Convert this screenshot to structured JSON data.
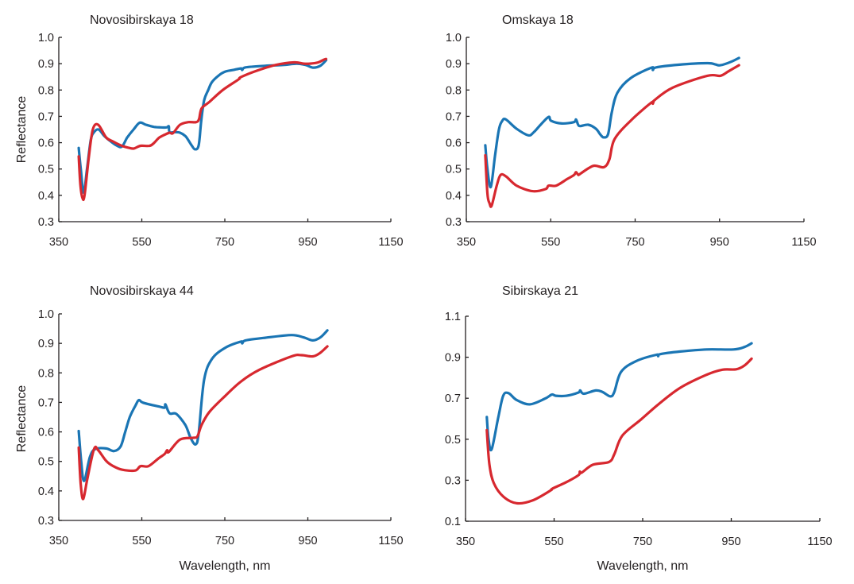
{
  "colors": {
    "series_a": "#1a75b4",
    "series_b": "#d7282f",
    "axis": "#231f20"
  },
  "chart_data": [
    {
      "type": "line",
      "title": "Novosibirskaya 18",
      "xlabel": "",
      "ylabel": "Reflectance",
      "xlim": [
        350,
        1150
      ],
      "ylim": [
        0.3,
        1.0
      ],
      "xticks": [
        350,
        550,
        750,
        950,
        1150
      ],
      "xtick_labels": [
        "350",
        "550",
        "750",
        "950",
        "1150"
      ],
      "yticks": [
        0.3,
        0.4,
        0.5,
        0.6,
        0.7,
        0.8,
        0.9,
        1.0
      ],
      "ytick_labels": [
        "0.3",
        "0.4",
        "0.5",
        "0.6",
        "0.7",
        "0.8",
        "0.9",
        "1.0"
      ],
      "grid": false,
      "series": [
        {
          "name": "blue",
          "color": "#1a75b4",
          "x": [
            398,
            403,
            410,
            418,
            427,
            435,
            446,
            460,
            475,
            489,
            502,
            515,
            530,
            545,
            560,
            579,
            595,
            610,
            615,
            617,
            630,
            642,
            655,
            662,
            670,
            678,
            687,
            693,
            700,
            710,
            719,
            735,
            751,
            770,
            789,
            792,
            800,
            847,
            890,
            923,
            945,
            962,
            980,
            994
          ],
          "y": [
            0.58,
            0.5,
            0.41,
            0.5,
            0.61,
            0.64,
            0.65,
            0.625,
            0.605,
            0.59,
            0.585,
            0.62,
            0.65,
            0.676,
            0.668,
            0.66,
            0.658,
            0.658,
            0.662,
            0.64,
            0.64,
            0.638,
            0.625,
            0.61,
            0.59,
            0.575,
            0.59,
            0.68,
            0.76,
            0.8,
            0.83,
            0.855,
            0.87,
            0.876,
            0.882,
            0.876,
            0.886,
            0.892,
            0.895,
            0.9,
            0.895,
            0.885,
            0.892,
            0.913
          ]
        },
        {
          "name": "red",
          "color": "#d7282f",
          "x": [
            398,
            402,
            407,
            412,
            422,
            432,
            445,
            464,
            480,
            502,
            520,
            531,
            547,
            569,
            580,
            591,
            605,
            617,
            625,
            642,
            662,
            681,
            688,
            694,
            713,
            745,
            783,
            785,
            790,
            821,
            872,
            917,
            940,
            955,
            975,
            988,
            994
          ],
          "y": [
            0.548,
            0.44,
            0.39,
            0.4,
            0.54,
            0.65,
            0.668,
            0.62,
            0.605,
            0.588,
            0.58,
            0.578,
            0.588,
            0.588,
            0.6,
            0.618,
            0.63,
            0.638,
            0.636,
            0.668,
            0.678,
            0.678,
            0.69,
            0.73,
            0.755,
            0.8,
            0.84,
            0.845,
            0.85,
            0.87,
            0.895,
            0.905,
            0.9,
            0.9,
            0.905,
            0.915,
            0.918
          ]
        }
      ]
    },
    {
      "type": "line",
      "title": "Omskaya 18",
      "xlabel": "",
      "ylabel": "",
      "xlim": [
        350,
        1150
      ],
      "ylim": [
        0.3,
        1.0
      ],
      "xticks": [
        350,
        550,
        750,
        950,
        1150
      ],
      "xtick_labels": [
        "350",
        "550",
        "750",
        "950",
        "1150"
      ],
      "yticks": [
        0.3,
        0.4,
        0.5,
        0.6,
        0.7,
        0.8,
        0.9,
        1.0
      ],
      "ytick_labels": [
        "0.3",
        "0.4",
        "0.5",
        "0.6",
        "0.7",
        "0.8",
        "0.9",
        "1.0"
      ],
      "grid": false,
      "series": [
        {
          "name": "blue",
          "color": "#1a75b4",
          "x": [
            395,
            400,
            408,
            418,
            427,
            435,
            444,
            469,
            497,
            510,
            526,
            545,
            551,
            576,
            605,
            610,
            615,
            620,
            639,
            657,
            668,
            676,
            686,
            695,
            708,
            739,
            789,
            792,
            800,
            852,
            921,
            940,
            952,
            977,
            996
          ],
          "y": [
            0.59,
            0.5,
            0.432,
            0.55,
            0.648,
            0.683,
            0.688,
            0.653,
            0.628,
            0.64,
            0.668,
            0.698,
            0.683,
            0.673,
            0.678,
            0.688,
            0.668,
            0.663,
            0.668,
            0.653,
            0.63,
            0.62,
            0.633,
            0.718,
            0.79,
            0.845,
            0.885,
            0.876,
            0.886,
            0.896,
            0.902,
            0.897,
            0.894,
            0.907,
            0.922
          ]
        },
        {
          "name": "red",
          "color": "#d7282f",
          "x": [
            395,
            400,
            405,
            410,
            422,
            431,
            444,
            469,
            507,
            538,
            545,
            563,
            589,
            605,
            610,
            615,
            620,
            651,
            676,
            689,
            701,
            739,
            789,
            792,
            795,
            839,
            921,
            952,
            971,
            996
          ],
          "y": [
            0.552,
            0.406,
            0.37,
            0.361,
            0.437,
            0.477,
            0.472,
            0.437,
            0.416,
            0.424,
            0.437,
            0.437,
            0.462,
            0.477,
            0.488,
            0.478,
            0.482,
            0.512,
            0.507,
            0.537,
            0.613,
            0.683,
            0.753,
            0.748,
            0.76,
            0.809,
            0.854,
            0.854,
            0.871,
            0.894
          ]
        }
      ]
    },
    {
      "type": "line",
      "title": "Novosibirskaya 44",
      "xlabel": "Wavelength, nm",
      "ylabel": "Reflectance",
      "xlim": [
        350,
        1150
      ],
      "ylim": [
        0.3,
        1.0
      ],
      "xticks": [
        350,
        550,
        750,
        950,
        1150
      ],
      "xtick_labels": [
        "350",
        "550",
        "750",
        "950",
        "1150"
      ],
      "yticks": [
        0.3,
        0.4,
        0.5,
        0.6,
        0.7,
        0.8,
        0.9,
        1.0
      ],
      "ytick_labels": [
        "0.3",
        "0.4",
        "0.5",
        "0.6",
        "0.7",
        "0.8",
        "0.9",
        "1.0"
      ],
      "grid": false,
      "series": [
        {
          "name": "blue",
          "color": "#1a75b4",
          "x": [
            398,
            404,
            411,
            425,
            438,
            464,
            483,
            499,
            510,
            521,
            535,
            543,
            553,
            591,
            605,
            607,
            617,
            633,
            655,
            668,
            680,
            687,
            700,
            719,
            751,
            789,
            792,
            800,
            847,
            911,
            940,
            962,
            980,
            997
          ],
          "y": [
            0.603,
            0.5,
            0.434,
            0.515,
            0.542,
            0.544,
            0.535,
            0.551,
            0.6,
            0.65,
            0.69,
            0.708,
            0.699,
            0.686,
            0.682,
            0.693,
            0.663,
            0.661,
            0.623,
            0.578,
            0.558,
            0.596,
            0.776,
            0.847,
            0.885,
            0.906,
            0.9,
            0.91,
            0.919,
            0.928,
            0.92,
            0.91,
            0.92,
            0.944
          ]
        },
        {
          "name": "red",
          "color": "#d7282f",
          "x": [
            398,
            403,
            409,
            419,
            435,
            445,
            464,
            480,
            502,
            534,
            547,
            566,
            591,
            605,
            611,
            615,
            642,
            674,
            684,
            694,
            713,
            751,
            789,
            834,
            911,
            935,
            962,
            980,
            997
          ],
          "y": [
            0.547,
            0.42,
            0.373,
            0.443,
            0.542,
            0.538,
            0.502,
            0.485,
            0.472,
            0.469,
            0.484,
            0.484,
            0.511,
            0.525,
            0.538,
            0.532,
            0.574,
            0.58,
            0.585,
            0.623,
            0.668,
            0.722,
            0.771,
            0.811,
            0.856,
            0.86,
            0.856,
            0.868,
            0.89
          ]
        }
      ]
    },
    {
      "type": "line",
      "title": "Sibirskaya 21",
      "xlabel": "Wavelength, nm",
      "ylabel": "",
      "xlim": [
        350,
        1150
      ],
      "ylim": [
        0.1,
        1.1
      ],
      "xticks": [
        350,
        550,
        750,
        950,
        1150
      ],
      "xtick_labels": [
        "350",
        "550",
        "750",
        "950",
        "1150"
      ],
      "yticks": [
        0.1,
        0.3,
        0.5,
        0.7,
        0.9,
        1.1
      ],
      "ytick_labels": [
        "0.1",
        "0.3",
        "0.5",
        "0.7",
        "0.9",
        "1.1"
      ],
      "grid": false,
      "series": [
        {
          "name": "blue",
          "color": "#1a75b4",
          "x": [
            398,
            402,
            409,
            424,
            435,
            447,
            465,
            495,
            530,
            545,
            554,
            578,
            605,
            609,
            617,
            644,
            659,
            677,
            686,
            701,
            734,
            781,
            785,
            790,
            835,
            895,
            955,
            980,
            996
          ],
          "y": [
            0.608,
            0.5,
            0.451,
            0.608,
            0.712,
            0.725,
            0.692,
            0.67,
            0.699,
            0.718,
            0.712,
            0.712,
            0.728,
            0.738,
            0.722,
            0.738,
            0.731,
            0.709,
            0.731,
            0.828,
            0.88,
            0.912,
            0.905,
            0.915,
            0.928,
            0.938,
            0.938,
            0.95,
            0.968
          ]
        },
        {
          "name": "red",
          "color": "#d7282f",
          "x": [
            398,
            404,
            414,
            435,
            465,
            501,
            542,
            546,
            578,
            605,
            608,
            612,
            638,
            674,
            686,
            704,
            746,
            787,
            835,
            895,
            930,
            961,
            980,
            996
          ],
          "y": [
            0.544,
            0.376,
            0.285,
            0.221,
            0.188,
            0.201,
            0.25,
            0.259,
            0.291,
            0.325,
            0.342,
            0.337,
            0.376,
            0.389,
            0.427,
            0.518,
            0.596,
            0.673,
            0.751,
            0.815,
            0.839,
            0.841,
            0.86,
            0.893
          ]
        }
      ]
    }
  ]
}
